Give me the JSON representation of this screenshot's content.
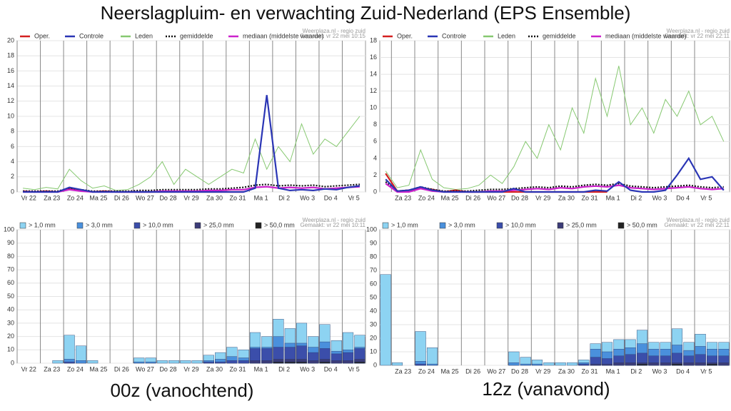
{
  "title": "Neerslagpluim- en verwachting Zuid-Nederland (EPS Ensemble)",
  "captions": [
    "00z (vanochtend)",
    "12z (vanavond)"
  ],
  "chart_data": [
    {
      "type": "line",
      "credit": "Weerplaza.nl - regio zuid",
      "made": "Gemaakt: vr 22 mei 10:15",
      "categories": [
        "Vr 22",
        null,
        "Za 23",
        null,
        "Zo 24",
        null,
        "Ma 25",
        null,
        "Di 26",
        null,
        "Wo 27",
        null,
        "Do 28",
        null,
        "Vr 29",
        null,
        "Za 30",
        null,
        "Zo 31",
        null,
        "Ma 1",
        null,
        "Di 2",
        null,
        "Wo 3",
        null,
        "Do 4",
        null,
        "Vr 5",
        null
      ],
      "ylim": [
        0,
        20
      ],
      "yticks": [
        0,
        2,
        4,
        6,
        8,
        10,
        12,
        14,
        16,
        18,
        20
      ],
      "grid": true,
      "series": [
        {
          "name": "Oper.",
          "color": "#d42020",
          "values": [
            0.1,
            0,
            0.1,
            0,
            0.4,
            0.2,
            0,
            0.1,
            0,
            0,
            0,
            0,
            0,
            0,
            0,
            0,
            0,
            0,
            0,
            0,
            null,
            null,
            null,
            null,
            null,
            null,
            null,
            null,
            null,
            null
          ]
        },
        {
          "name": "Controle",
          "color": "#2a35b5",
          "values": [
            0,
            0,
            0,
            0,
            0.6,
            0.3,
            0,
            0,
            0,
            0,
            0,
            0,
            0,
            0,
            0,
            0,
            0,
            0,
            0,
            0,
            0.5,
            12.8,
            0.5,
            0.2,
            0.3,
            0.2,
            0.4,
            0.3,
            0.6,
            0.8
          ]
        },
        {
          "name": "Leden",
          "color": "#86c870",
          "values": [
            0.5,
            0.3,
            0.6,
            0.4,
            3,
            1.5,
            0.5,
            0.8,
            0.2,
            0.3,
            1,
            2,
            4,
            1,
            3,
            2,
            1,
            2,
            3,
            2.5,
            7,
            3,
            6,
            4,
            9,
            5,
            7,
            6,
            8,
            10
          ]
        },
        {
          "name": "gemiddelde",
          "color": "#111111",
          "dash": true,
          "values": [
            0.1,
            0.1,
            0.1,
            0.1,
            0.5,
            0.3,
            0.1,
            0.1,
            0.1,
            0.1,
            0.2,
            0.2,
            0.3,
            0.3,
            0.3,
            0.3,
            0.4,
            0.4,
            0.5,
            0.6,
            0.9,
            1.0,
            0.8,
            0.9,
            0.8,
            0.9,
            0.7,
            0.8,
            0.9,
            1.0
          ]
        },
        {
          "name": "mediaan (middelste waarde)",
          "color": "#cc22cc",
          "values": [
            0,
            0,
            0,
            0,
            0.3,
            0.1,
            0,
            0,
            0,
            0,
            0,
            0,
            0.1,
            0.1,
            0.1,
            0.1,
            0.2,
            0.2,
            0.3,
            0.3,
            0.6,
            0.7,
            0.5,
            0.6,
            0.5,
            0.6,
            0.4,
            0.5,
            0.6,
            0.7
          ]
        }
      ]
    },
    {
      "type": "line",
      "credit": "Weerplaza.nl - regio zuid",
      "made": "Gemaakt: vr 22 mei 22:11",
      "categories": [
        null,
        "Za 23",
        null,
        "Zo 24",
        null,
        "Ma 25",
        null,
        "Di 26",
        null,
        "Wo 27",
        null,
        "Do 28",
        null,
        "Vr 29",
        null,
        "Za 30",
        null,
        "Zo 31",
        null,
        "Ma 1",
        null,
        "Di 2",
        null,
        "Wo 3",
        null,
        "Do 4",
        null,
        "Vr 5",
        null,
        null
      ],
      "ylim": [
        0,
        18
      ],
      "yticks": [
        0,
        2,
        4,
        6,
        8,
        10,
        12,
        14,
        16,
        18
      ],
      "grid": true,
      "series": [
        {
          "name": "Oper.",
          "color": "#d42020",
          "values": [
            2.2,
            0.1,
            0.2,
            0.5,
            0.3,
            0,
            0.2,
            0,
            0,
            0,
            0,
            0,
            0,
            0,
            0,
            0,
            0,
            0,
            0,
            0,
            null,
            null,
            null,
            null,
            null,
            null,
            null,
            null,
            null,
            null
          ]
        },
        {
          "name": "Controle",
          "color": "#2a35b5",
          "values": [
            1.5,
            0.1,
            0.2,
            0.6,
            0.2,
            0,
            0,
            0,
            0,
            0,
            0,
            0.4,
            0,
            0,
            0,
            0,
            0,
            0,
            0.2,
            0.1,
            1.2,
            0.2,
            0,
            0,
            0.2,
            2,
            4,
            1.5,
            1.8,
            0.2
          ]
        },
        {
          "name": "Leden",
          "color": "#86c870",
          "values": [
            2.5,
            0.5,
            0.8,
            5,
            1.5,
            0.5,
            0.3,
            0.4,
            0.8,
            2,
            1,
            3,
            6,
            4,
            8,
            5,
            10,
            7,
            13.5,
            9,
            15,
            8,
            10,
            7,
            11,
            9,
            12,
            8,
            9,
            6
          ]
        },
        {
          "name": "gemiddelde",
          "color": "#111111",
          "dash": true,
          "values": [
            1.2,
            0.1,
            0.2,
            0.6,
            0.3,
            0.1,
            0.1,
            0.1,
            0.2,
            0.3,
            0.3,
            0.4,
            0.5,
            0.6,
            0.5,
            0.7,
            0.6,
            0.8,
            0.9,
            0.8,
            1.0,
            0.7,
            0.6,
            0.5,
            0.6,
            0.7,
            0.8,
            0.6,
            0.5,
            0.6
          ]
        },
        {
          "name": "mediaan (middelste waarde)",
          "color": "#cc22cc",
          "values": [
            1.0,
            0,
            0,
            0.4,
            0.1,
            0,
            0,
            0,
            0,
            0.1,
            0.1,
            0.2,
            0.3,
            0.4,
            0.3,
            0.5,
            0.4,
            0.6,
            0.7,
            0.6,
            0.8,
            0.5,
            0.4,
            0.3,
            0.4,
            0.5,
            0.6,
            0.4,
            0.3,
            0.4
          ]
        }
      ]
    },
    {
      "type": "bar",
      "credit": "Weerplaza.nl - regio zuid",
      "made": "Gemaakt: vr 22 mei 10:11",
      "categories": [
        "Vr 22",
        null,
        "Za 23",
        null,
        "Zo 24",
        null,
        "Ma 25",
        null,
        "Di 26",
        null,
        "Wo 27",
        null,
        "Do 28",
        null,
        "Vr 29",
        null,
        "Za 30",
        null,
        "Zo 31",
        null,
        "Ma 1",
        null,
        "Di 2",
        null,
        "Wo 3",
        null,
        "Do 4",
        null,
        "Vr 5",
        null
      ],
      "ylim": [
        0,
        100
      ],
      "yticks": [
        0,
        10,
        20,
        30,
        40,
        50,
        60,
        70,
        80,
        90,
        100
      ],
      "grid": true,
      "series": [
        {
          "name": "> 1,0 mm",
          "color": "#8dd3f2",
          "values": [
            0,
            0,
            0,
            2,
            21,
            13,
            2,
            0,
            0,
            0,
            4,
            4,
            2,
            2,
            2,
            2,
            6,
            8,
            12,
            10,
            23,
            20,
            33,
            26,
            30,
            20,
            29,
            17,
            23,
            21
          ]
        },
        {
          "name": "> 3,0 mm",
          "color": "#4a90dc",
          "values": [
            0,
            0,
            0,
            0,
            3,
            2,
            0,
            0,
            0,
            0,
            1,
            1,
            0,
            0,
            0,
            0,
            2,
            3,
            5,
            4,
            12,
            12,
            20,
            15,
            15,
            12,
            16,
            9,
            10,
            12
          ]
        },
        {
          "name": "> 10,0 mm",
          "color": "#3b4eaa",
          "values": [
            0,
            0,
            0,
            0,
            1,
            0,
            0,
            0,
            0,
            0,
            0,
            0,
            0,
            0,
            0,
            0,
            1,
            1,
            2,
            2,
            11,
            11,
            12,
            12,
            13,
            8,
            11,
            7,
            8,
            11
          ]
        },
        {
          "name": "> 25,0 mm",
          "color": "#3c3c78",
          "values": [
            0,
            0,
            0,
            0,
            0,
            0,
            0,
            0,
            0,
            0,
            0,
            0,
            0,
            0,
            0,
            0,
            0,
            0,
            0,
            0,
            2,
            2,
            3,
            3,
            3,
            2,
            3,
            2,
            2,
            3
          ]
        },
        {
          "name": "> 50,0 mm",
          "color": "#222222",
          "values": [
            0,
            0,
            0,
            0,
            0,
            0,
            0,
            0,
            0,
            0,
            0,
            0,
            0,
            0,
            0,
            0,
            0,
            0,
            0,
            0,
            0,
            0,
            1,
            1,
            1,
            0,
            1,
            0,
            0,
            1
          ]
        }
      ]
    },
    {
      "type": "bar",
      "credit": "Weerplaza.nl - regio zuid",
      "made": "Gemaakt: vr 22 mei 22:11",
      "categories": [
        null,
        "Za 23",
        null,
        "Zo 24",
        null,
        "Ma 25",
        null,
        "Di 26",
        null,
        "Wo 27",
        null,
        "Do 28",
        null,
        "Vr 29",
        null,
        "Za 30",
        null,
        "Zo 31",
        null,
        "Ma 1",
        null,
        "Di 2",
        null,
        "Wo 3",
        null,
        "Do 4",
        null,
        "Vr 5",
        null,
        null
      ],
      "ylim": [
        0,
        100
      ],
      "yticks": [
        0,
        10,
        20,
        30,
        40,
        50,
        60,
        70,
        80,
        90,
        100
      ],
      "grid": true,
      "series": [
        {
          "name": "> 1,0 mm",
          "color": "#8dd3f2",
          "values": [
            67,
            2,
            0,
            25,
            13,
            0,
            0,
            0,
            0,
            0,
            0,
            10,
            6,
            4,
            2,
            2,
            2,
            4,
            16,
            17,
            19,
            19,
            26,
            17,
            17,
            27,
            17,
            23,
            17,
            17
          ]
        },
        {
          "name": "> 3,0 mm",
          "color": "#4a90dc",
          "values": [
            0,
            0,
            0,
            3,
            1,
            0,
            0,
            0,
            0,
            0,
            0,
            2,
            1,
            1,
            0,
            0,
            0,
            2,
            12,
            10,
            12,
            13,
            16,
            12,
            12,
            15,
            11,
            14,
            12,
            12
          ]
        },
        {
          "name": "> 10,0 mm",
          "color": "#3b4eaa",
          "values": [
            0,
            0,
            0,
            1,
            0,
            0,
            0,
            0,
            0,
            0,
            0,
            0,
            0,
            0,
            0,
            0,
            0,
            1,
            6,
            5,
            7,
            8,
            9,
            7,
            7,
            9,
            7,
            8,
            7,
            7
          ]
        },
        {
          "name": "> 25,0 mm",
          "color": "#3c3c78",
          "values": [
            0,
            0,
            0,
            0,
            0,
            0,
            0,
            0,
            0,
            0,
            0,
            0,
            0,
            0,
            0,
            0,
            0,
            0,
            1,
            1,
            2,
            2,
            2,
            2,
            2,
            2,
            2,
            2,
            2,
            2
          ]
        },
        {
          "name": "> 50,0 mm",
          "color": "#222222",
          "values": [
            0,
            0,
            0,
            0,
            0,
            0,
            0,
            0,
            0,
            0,
            0,
            0,
            0,
            0,
            0,
            0,
            0,
            0,
            0,
            0,
            0,
            0,
            1,
            0,
            0,
            1,
            0,
            0,
            1,
            0
          ]
        }
      ]
    }
  ]
}
